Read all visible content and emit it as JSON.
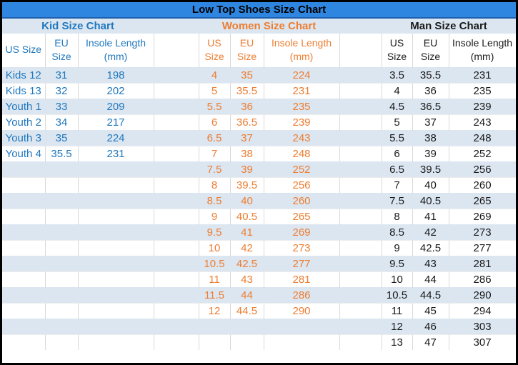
{
  "title": "Low Top Shoes Size Chart",
  "colors": {
    "title_bar_bg": "#2E86E0",
    "title_bar_edge": "#1E5FAE",
    "title_text": "#000000",
    "section_row_bg": "#DCE6F1",
    "stripe_bg": "#DCE6F1",
    "kid_accent": "#2078BE",
    "women_accent": "#ED7D31",
    "man_accent": "#1A1A1A",
    "gridline": "#D9D9D9",
    "outer_border": "#000000"
  },
  "chart_data": [
    {
      "type": "table",
      "title": "Kid Size Chart",
      "columns": [
        "US Size",
        "EU Size",
        "Insole Length (mm)"
      ],
      "rows": [
        [
          "Kids 12",
          "31",
          "198"
        ],
        [
          "Kids 13",
          "32",
          "202"
        ],
        [
          "Youth 1",
          "33",
          "209"
        ],
        [
          "Youth 2",
          "34",
          "217"
        ],
        [
          "Youth 3",
          "35",
          "224"
        ],
        [
          "Youth 4",
          "35.5",
          "231"
        ]
      ]
    },
    {
      "type": "table",
      "title": "Women Size Chart",
      "columns": [
        "US Size",
        "EU Size",
        "Insole Length (mm)"
      ],
      "rows": [
        [
          "4",
          "35",
          "224"
        ],
        [
          "5",
          "35.5",
          "231"
        ],
        [
          "5.5",
          "36",
          "235"
        ],
        [
          "6",
          "36.5",
          "239"
        ],
        [
          "6.5",
          "37",
          "243"
        ],
        [
          "7",
          "38",
          "248"
        ],
        [
          "7.5",
          "39",
          "252"
        ],
        [
          "8",
          "39.5",
          "256"
        ],
        [
          "8.5",
          "40",
          "260"
        ],
        [
          "9",
          "40.5",
          "265"
        ],
        [
          "9.5",
          "41",
          "269"
        ],
        [
          "10",
          "42",
          "273"
        ],
        [
          "10.5",
          "42.5",
          "277"
        ],
        [
          "11",
          "43",
          "281"
        ],
        [
          "11.5",
          "44",
          "286"
        ],
        [
          "12",
          "44.5",
          "290"
        ]
      ]
    },
    {
      "type": "table",
      "title": "Man Size Chart",
      "columns": [
        "US Size",
        "EU Size",
        "Insole Length (mm)"
      ],
      "rows": [
        [
          "3.5",
          "35.5",
          "231"
        ],
        [
          "4",
          "36",
          "235"
        ],
        [
          "4.5",
          "36.5",
          "239"
        ],
        [
          "5",
          "37",
          "243"
        ],
        [
          "5.5",
          "38",
          "248"
        ],
        [
          "6",
          "39",
          "252"
        ],
        [
          "6.5",
          "39.5",
          "256"
        ],
        [
          "7",
          "40",
          "260"
        ],
        [
          "7.5",
          "40.5",
          "265"
        ],
        [
          "8",
          "41",
          "269"
        ],
        [
          "8.5",
          "42",
          "273"
        ],
        [
          "9",
          "42.5",
          "277"
        ],
        [
          "9.5",
          "43",
          "281"
        ],
        [
          "10",
          "44",
          "286"
        ],
        [
          "10.5",
          "44.5",
          "290"
        ],
        [
          "11",
          "45",
          "294"
        ],
        [
          "12",
          "46",
          "303"
        ],
        [
          "13",
          "47",
          "307"
        ]
      ]
    }
  ]
}
